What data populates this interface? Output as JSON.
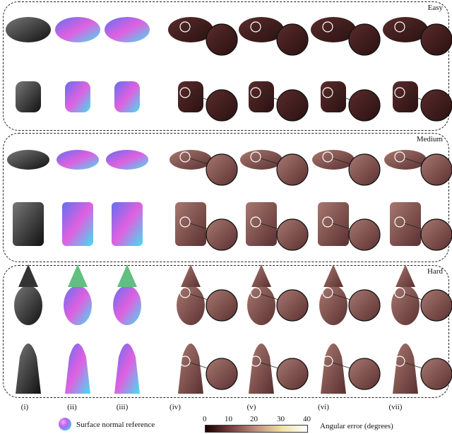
{
  "panels": [
    {
      "difficulty": "Easy"
    },
    {
      "difficulty": "Medium"
    },
    {
      "difficulty": "Hard"
    }
  ],
  "columns": [
    "(i)",
    "(ii)",
    "(iii)",
    "(iv)",
    "(v)",
    "(vi)",
    "(vii)"
  ],
  "legend": {
    "normal_reference": "Surface normal reference",
    "colorbar_ticks": [
      "0",
      "10",
      "20",
      "30",
      "40"
    ],
    "colorbar_label": "Angular error (degrees)",
    "colorbar_range": [
      0,
      40
    ]
  },
  "colors": {
    "error_dark": "#3a1a1a",
    "error_mid": "#8a5a55",
    "error_high": "#e8d8a0",
    "normal_magenta": "#e060e0",
    "normal_cyan": "#40e0f0",
    "normal_blue": "#6070f0"
  }
}
